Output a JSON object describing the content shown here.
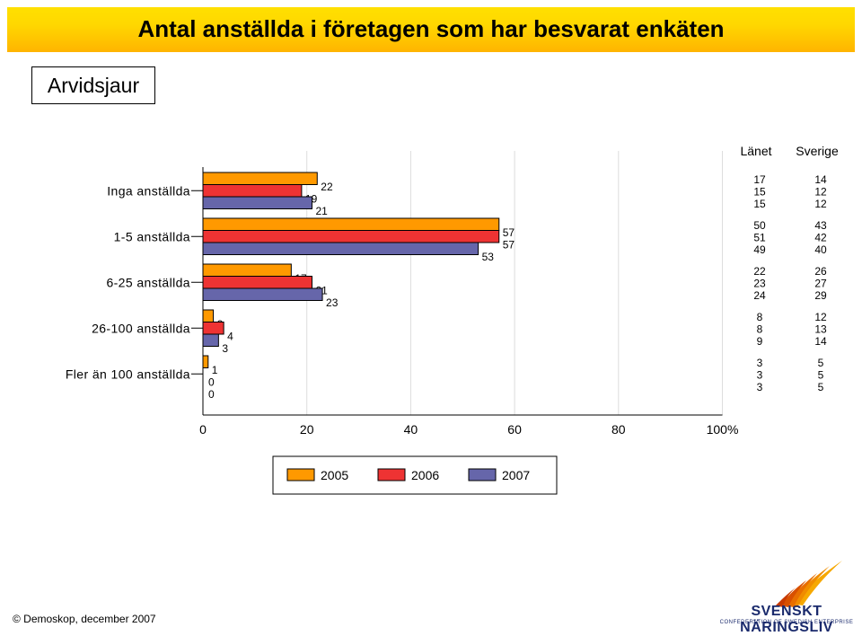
{
  "title": "Antal anställda i företagen som har besvarat enkäten",
  "region": "Arvidsjaur",
  "footer": "© Demoskop, december 2007",
  "logo": {
    "name": "SVENSKT NÄRINGSLIV",
    "subtitle": "CONFEDERATION OF SWEDISH ENTERPRISE"
  },
  "chart_data": {
    "type": "bar",
    "orientation": "horizontal",
    "categories": [
      "Inga anställda",
      "1-5 anställda",
      "6-25 anställda",
      "26-100 anställda",
      "Fler än 100 anställda"
    ],
    "series": [
      {
        "name": "2005",
        "color": "#ff9900",
        "values": [
          22,
          57,
          17,
          2,
          1
        ]
      },
      {
        "name": "2006",
        "color": "#ee3333",
        "values": [
          19,
          57,
          21,
          4,
          0
        ]
      },
      {
        "name": "2007",
        "color": "#6666aa",
        "values": [
          21,
          53,
          23,
          3,
          0
        ]
      }
    ],
    "xlim": [
      0,
      100
    ],
    "xticks": [
      "0",
      "20",
      "40",
      "60",
      "80",
      "100%"
    ],
    "comparison_columns": [
      {
        "label": "Länet",
        "values": [
          [
            "17",
            "15",
            "15"
          ],
          [
            "50",
            "51",
            "49"
          ],
          [
            "22",
            "23",
            "24"
          ],
          [
            "8",
            "8",
            "9"
          ],
          [
            "3",
            "3",
            "3"
          ]
        ]
      },
      {
        "label": "Sverige",
        "values": [
          [
            "14",
            "12",
            "12"
          ],
          [
            "43",
            "42",
            "40"
          ],
          [
            "26",
            "27",
            "29"
          ],
          [
            "12",
            "13",
            "14"
          ],
          [
            "5",
            "5",
            "5"
          ]
        ]
      }
    ],
    "legend_position": "bottom"
  }
}
